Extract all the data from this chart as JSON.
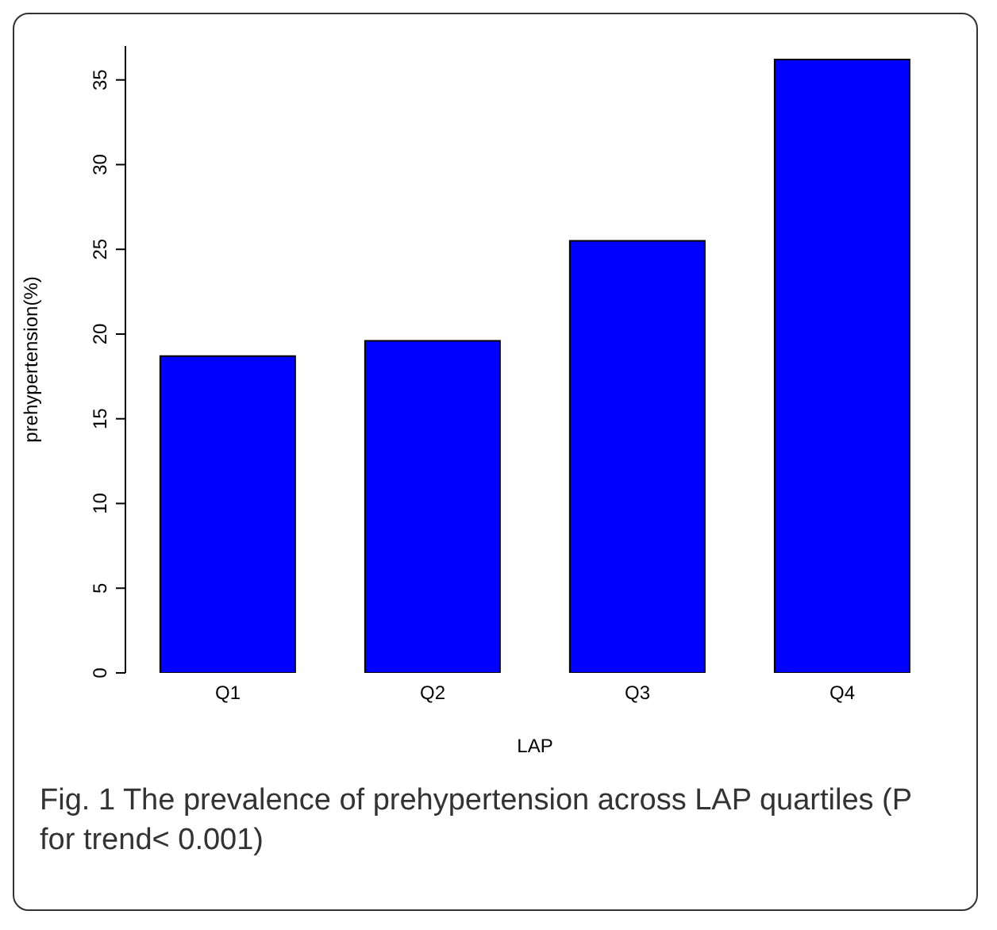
{
  "chart_data": {
    "type": "bar",
    "xlabel": "LAP",
    "ylabel": "prehypertension(%)",
    "categories": [
      "Q1",
      "Q2",
      "Q3",
      "Q4"
    ],
    "values": [
      18.7,
      19.6,
      25.5,
      36.2
    ],
    "color": "#0000ff",
    "ylim": [
      0,
      37
    ],
    "yticks": [
      0,
      5,
      10,
      15,
      20,
      25,
      30,
      35
    ],
    "grid": false,
    "legend": false,
    "annotations": [
      "Fig. 1 The prevalence of prehypertension across LAP quartiles (P for trend< 0.001)"
    ]
  }
}
